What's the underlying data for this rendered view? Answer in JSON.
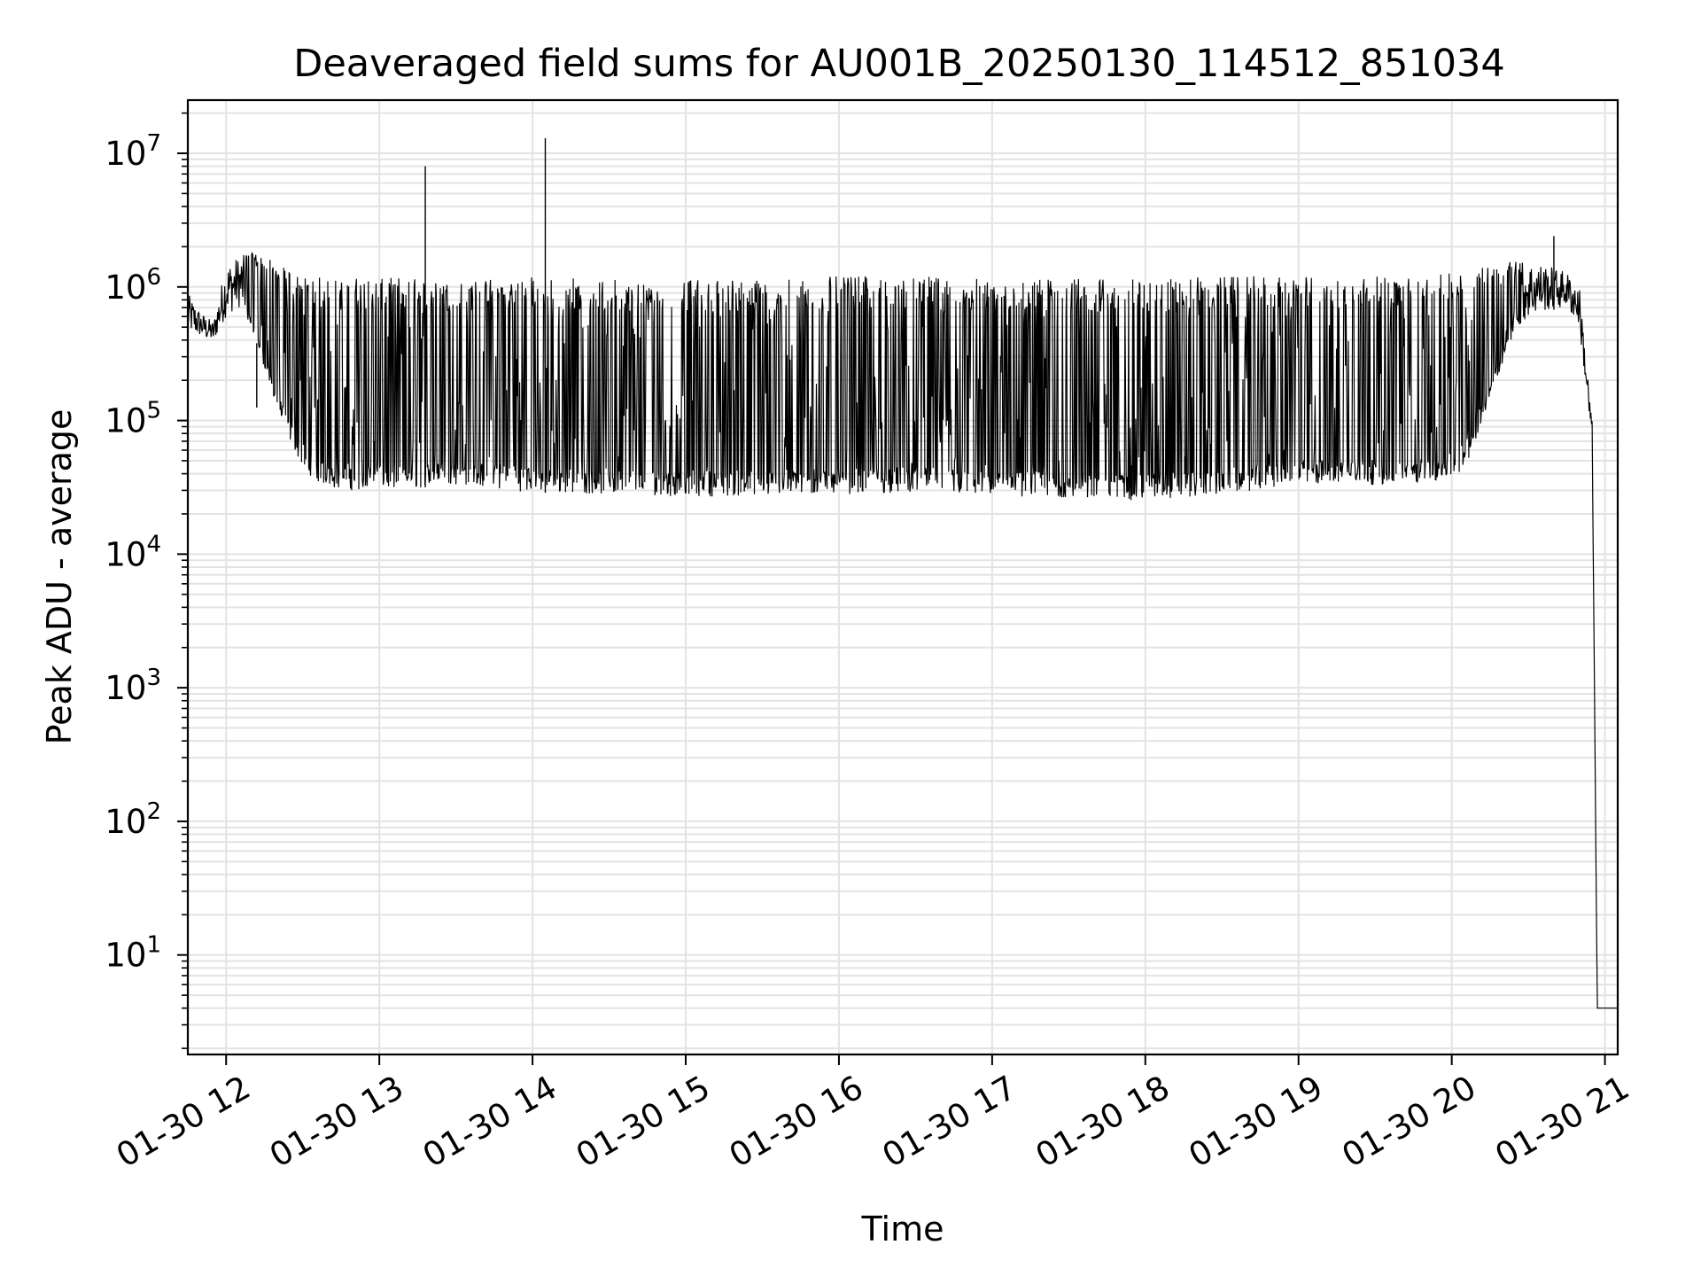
{
  "chart_data": {
    "type": "line",
    "title": "Deaveraged field sums for AU001B_20250130_114512_851034",
    "xlabel": "Time",
    "ylabel": "Peak ADU - average",
    "yscale": "log",
    "ylim": [
      1.8,
      25000000
    ],
    "xlim": [
      "2025-01-30 11:45",
      "2025-01-30 21:05"
    ],
    "grid": true,
    "line_color": "#000000",
    "x_ticks": [
      "01-30 12",
      "01-30 13",
      "01-30 14",
      "01-30 15",
      "01-30 16",
      "01-30 17",
      "01-30 18",
      "01-30 19",
      "01-30 20",
      "01-30 21"
    ],
    "y_ticks": [
      {
        "value": 10,
        "base": "10",
        "exp": "1"
      },
      {
        "value": 100,
        "base": "10",
        "exp": "2"
      },
      {
        "value": 1000,
        "base": "10",
        "exp": "3"
      },
      {
        "value": 10000,
        "base": "10",
        "exp": "4"
      },
      {
        "value": 100000,
        "base": "10",
        "exp": "5"
      },
      {
        "value": 1000000,
        "base": "10",
        "exp": "6"
      },
      {
        "value": 10000000,
        "base": "10",
        "exp": "7"
      }
    ],
    "series": [
      {
        "x": [
          "2025-01-30 11:45",
          "2025-01-30 11:50",
          "2025-01-30 11:55",
          "2025-01-30 12:00",
          "2025-01-30 12:05",
          "2025-01-30 12:10",
          "2025-01-30 12:15",
          "2025-01-30 12:20",
          "2025-01-30 12:25",
          "2025-01-30 12:30",
          "2025-01-30 12:35",
          "2025-01-30 12:40",
          "2025-01-30 12:45",
          "2025-01-30 12:50",
          "2025-01-30 13:00",
          "2025-01-30 13:10",
          "2025-01-30 13:20",
          "2025-01-30 13:30",
          "2025-01-30 13:40",
          "2025-01-30 13:50",
          "2025-01-30 14:00",
          "2025-01-30 14:30",
          "2025-01-30 15:00",
          "2025-01-30 15:30",
          "2025-01-30 16:00",
          "2025-01-30 16:30",
          "2025-01-30 17:00",
          "2025-01-30 17:30",
          "2025-01-30 18:00",
          "2025-01-30 18:30",
          "2025-01-30 19:00",
          "2025-01-30 19:30",
          "2025-01-30 19:50",
          "2025-01-30 20:05",
          "2025-01-30 20:15",
          "2025-01-30 20:25",
          "2025-01-30 20:35",
          "2025-01-30 20:45",
          "2025-01-30 20:50",
          "2025-01-30 20:55",
          "2025-01-30 20:57",
          "2025-01-30 21:05"
        ],
        "low": [
          450000,
          420000,
          380000,
          600000,
          700000,
          500000,
          250000,
          120000,
          70000,
          45000,
          35000,
          32000,
          30000,
          30000,
          31000,
          30000,
          32000,
          33000,
          32000,
          30000,
          29000,
          28000,
          27000,
          27000,
          28000,
          29000,
          27000,
          26000,
          25000,
          28000,
          33000,
          33000,
          34000,
          40000,
          150000,
          500000,
          650000,
          700000,
          500000,
          60000,
          4,
          4
        ],
        "high": [
          900000,
          650000,
          550000,
          1500000,
          1700000,
          1800000,
          1700000,
          1500000,
          1300000,
          1200000,
          1200000,
          1150000,
          1150000,
          1200000,
          1150000,
          1200000,
          1100000,
          1100000,
          1150000,
          1200000,
          1200000,
          1150000,
          1150000,
          1150000,
          1200000,
          1200000,
          1150000,
          1150000,
          1150000,
          1200000,
          1200000,
          1200000,
          1200000,
          1300000,
          1500000,
          1600000,
          1500000,
          1300000,
          1000000,
          100000,
          4,
          4
        ]
      }
    ],
    "spikes": [
      {
        "x": "2025-01-30 13:18",
        "y": 8000000
      },
      {
        "x": "2025-01-30 14:05",
        "y": 13000000
      },
      {
        "x": "2025-01-30 20:40",
        "y": 2400000
      },
      {
        "x": "2025-01-30 12:12",
        "y": 125000
      }
    ]
  }
}
